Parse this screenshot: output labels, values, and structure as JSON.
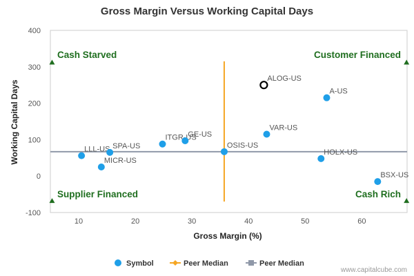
{
  "chart_data": {
    "type": "scatter",
    "title": "Gross Margin Versus Working Capital Days",
    "xlabel": "Gross Margin (%)",
    "ylabel": "Working Capital Days",
    "xlim": [
      5,
      68
    ],
    "ylim": [
      -100,
      400
    ],
    "x_ticks": [
      10,
      20,
      30,
      40,
      50,
      60
    ],
    "y_ticks": [
      -100,
      0,
      100,
      200,
      300,
      400
    ],
    "grid": false,
    "legend_position": "bottom",
    "colors": {
      "symbol": "#1f9fe8",
      "peer_median_x": "#f5a623",
      "peer_median_y": "#8f98a8",
      "quadrant_text": "#1f6e1f",
      "marker": "#1f6e1f"
    },
    "points": [
      {
        "label": "LLL-US",
        "x": 10.5,
        "y": 56
      },
      {
        "label": "SPA-US",
        "x": 15.5,
        "y": 65
      },
      {
        "label": "MICR-US",
        "x": 14.0,
        "y": 25
      },
      {
        "label": "ITGR-US",
        "x": 24.8,
        "y": 88
      },
      {
        "label": "GE-US",
        "x": 28.8,
        "y": 97
      },
      {
        "label": "OSIS-US",
        "x": 35.7,
        "y": 67
      },
      {
        "label": "VAR-US",
        "x": 43.2,
        "y": 115
      },
      {
        "label": "A-US",
        "x": 53.8,
        "y": 215
      },
      {
        "label": "HOLX-US",
        "x": 52.8,
        "y": 48
      },
      {
        "label": "BSX-US",
        "x": 62.8,
        "y": -15
      }
    ],
    "highlight": {
      "label": "ALOG-US",
      "x": 42.7,
      "y": 250
    },
    "peer_median_x": 35.7,
    "peer_median_y": 67,
    "quadrants": {
      "top_left": "Cash Starved",
      "top_right": "Customer Financed",
      "bottom_left": "Supplier Financed",
      "bottom_right": "Cash Rich"
    },
    "legend": [
      {
        "name": "Symbol",
        "kind": "dot"
      },
      {
        "name": "Peer Median",
        "kind": "diamond-line"
      },
      {
        "name": "Peer Median",
        "kind": "square-line"
      }
    ]
  },
  "credit": "www.capitalcube.com"
}
